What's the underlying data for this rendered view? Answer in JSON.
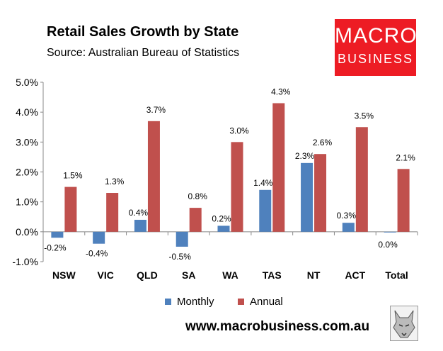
{
  "header": {
    "title": "Retail Sales Growth by State",
    "subtitle": "Source: Australian Bureau of Statistics"
  },
  "logo": {
    "line1": "MACRO",
    "line2": "BUSINESS",
    "color": "#ed1c24"
  },
  "footer": {
    "url": "www.macrobusiness.com.au"
  },
  "wolf_icon": "wolf-head-icon",
  "chart_data": {
    "type": "bar",
    "title": "Retail Sales Growth by State",
    "categories": [
      "NSW",
      "VIC",
      "QLD",
      "SA",
      "WA",
      "TAS",
      "NT",
      "ACT",
      "Total"
    ],
    "series": [
      {
        "name": "Monthly",
        "color": "#4f81bd",
        "values": [
          -0.2,
          -0.4,
          0.4,
          -0.5,
          0.2,
          1.4,
          2.3,
          0.3,
          0.0
        ],
        "labels": [
          "-0.2%",
          "-0.4%",
          "0.4%",
          "-0.5%",
          "0.2%",
          "1.4%",
          "2.3%",
          "0.3%",
          "0.0%"
        ]
      },
      {
        "name": "Annual",
        "color": "#c0504d",
        "values": [
          1.5,
          1.3,
          3.7,
          0.8,
          3.0,
          4.3,
          2.6,
          3.5,
          2.1
        ],
        "labels": [
          "1.5%",
          "1.3%",
          "3.7%",
          "0.8%",
          "3.0%",
          "4.3%",
          "2.6%",
          "3.5%",
          "2.1%"
        ]
      }
    ],
    "ylim": [
      -1.0,
      5.0
    ],
    "yticks": [
      -1.0,
      0.0,
      1.0,
      2.0,
      3.0,
      4.0,
      5.0
    ],
    "ytick_labels": [
      "-1.0%",
      "0.0%",
      "1.0%",
      "2.0%",
      "3.0%",
      "4.0%",
      "5.0%"
    ],
    "grid": false,
    "legend": "bottom"
  }
}
